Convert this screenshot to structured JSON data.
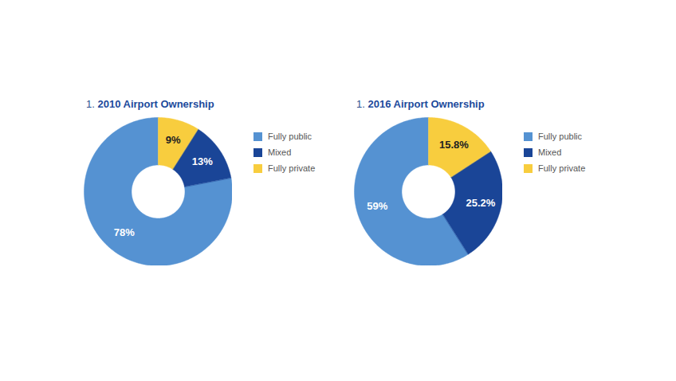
{
  "chart_data": [
    {
      "type": "pie",
      "title": "1. 2010 Airport Ownership",
      "categories": [
        "Fully public",
        "Mixed",
        "Fully private"
      ],
      "values": [
        78,
        13,
        9
      ],
      "value_labels": [
        "78%",
        "13%",
        "9%"
      ],
      "colors": [
        "#5592d2",
        "#1a4597",
        "#f8cd3e"
      ],
      "data_labels": true,
      "legend": "right"
    },
    {
      "type": "pie",
      "title": "1. 2016 Airport Ownership",
      "categories": [
        "Fully public",
        "Mixed",
        "Fully private"
      ],
      "values": [
        59,
        25.2,
        15.8
      ],
      "value_labels": [
        "59%",
        "25.2%",
        "15.8%"
      ],
      "colors": [
        "#5592d2",
        "#1a4597",
        "#f8cd3e"
      ],
      "data_labels": true,
      "legend": "right"
    }
  ]
}
